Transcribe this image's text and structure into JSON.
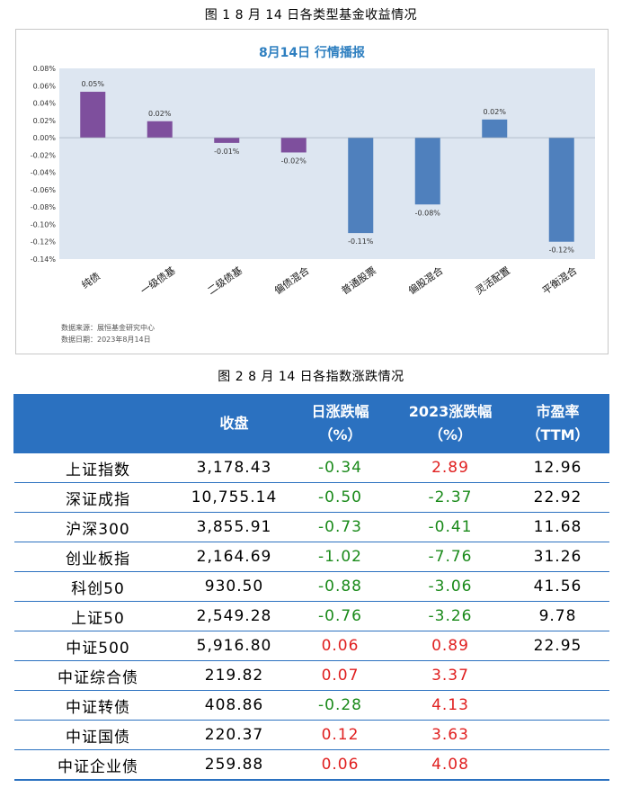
{
  "fig1_caption": "图 1   8 月 14 日各类型基金收益情况",
  "fig2_caption": "图 2   8 月 14 日各指数涨跌情况",
  "chart_data": {
    "type": "bar",
    "title": "8月14日  行情播报",
    "categories": [
      "纯债",
      "一级债基",
      "二级债基",
      "偏债混合",
      "普通股票",
      "偏股混合",
      "灵活配置",
      "平衡混合"
    ],
    "values": [
      0.053,
      0.019,
      -0.006,
      -0.017,
      -0.11,
      -0.077,
      0.021,
      -0.12
    ],
    "value_labels": [
      "0.05%",
      "0.02%",
      "-0.01%",
      "-0.02%",
      "-0.11%",
      "-0.08%",
      "0.02%",
      "-0.12%"
    ],
    "bar_colors": [
      "#7e4f9d",
      "#7e4f9d",
      "#7e4f9d",
      "#7e4f9d",
      "#4f80bd",
      "#4f80bd",
      "#4f80bd",
      "#4f80bd"
    ],
    "ylim": [
      -0.14,
      0.08
    ],
    "yticks": [
      "0.08%",
      "0.06%",
      "0.04%",
      "0.02%",
      "0.00%",
      "-0.02%",
      "-0.04%",
      "-0.06%",
      "-0.08%",
      "-0.10%",
      "-0.12%",
      "-0.14%"
    ],
    "plot_background": "#dde6f1",
    "source_lines": [
      "数据来源：展恒基金研究中心",
      "数据日期：2023年8月14日"
    ]
  },
  "table": {
    "headers": [
      {
        "line1": "",
        "line2": ""
      },
      {
        "line1": "收盘",
        "line2": ""
      },
      {
        "line1": "日涨跌幅",
        "line2": "（%）"
      },
      {
        "line1": "2023涨跌幅",
        "line2": "（%）"
      },
      {
        "line1": "市盈率",
        "line2": "（TTM）"
      }
    ],
    "rows": [
      {
        "name": "上证指数",
        "close": "3,178.43",
        "day": "-0.34",
        "ytd": "2.89",
        "pe": "12.96"
      },
      {
        "name": "深证成指",
        "close": "10,755.14",
        "day": "-0.50",
        "ytd": "-2.37",
        "pe": "22.92"
      },
      {
        "name": "沪深300",
        "close": "3,855.91",
        "day": "-0.73",
        "ytd": "-0.41",
        "pe": "11.68"
      },
      {
        "name": "创业板指",
        "close": "2,164.69",
        "day": "-1.02",
        "ytd": "-7.76",
        "pe": "31.26"
      },
      {
        "name": "科创50",
        "close": "930.50",
        "day": "-0.88",
        "ytd": "-3.06",
        "pe": "41.56"
      },
      {
        "name": "上证50",
        "close": "2,549.28",
        "day": "-0.76",
        "ytd": "-3.26",
        "pe": "9.78"
      },
      {
        "name": "中证500",
        "close": "5,916.80",
        "day": "0.06",
        "ytd": "0.89",
        "pe": "22.95"
      },
      {
        "name": "中证综合债",
        "close": "219.82",
        "day": "0.07",
        "ytd": "3.37",
        "pe": ""
      },
      {
        "name": "中证转债",
        "close": "408.86",
        "day": "-0.28",
        "ytd": "4.13",
        "pe": ""
      },
      {
        "name": "中证国债",
        "close": "220.37",
        "day": "0.12",
        "ytd": "3.63",
        "pe": ""
      },
      {
        "name": "中证企业债",
        "close": "259.88",
        "day": "0.06",
        "ytd": "4.08",
        "pe": ""
      }
    ]
  }
}
